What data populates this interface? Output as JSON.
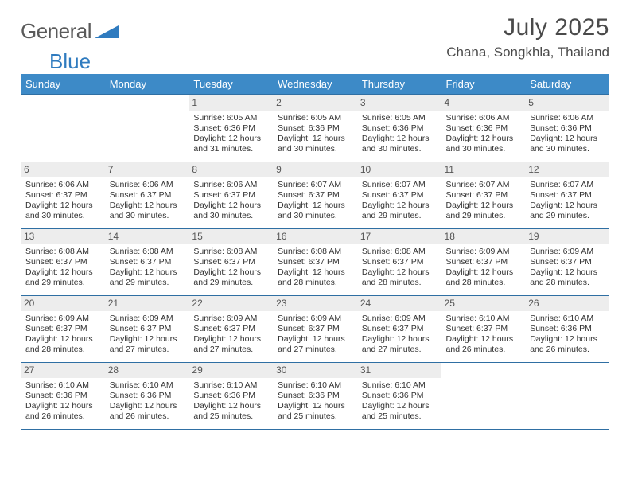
{
  "logo": {
    "word1": "General",
    "word2": "Blue"
  },
  "title": "July 2025",
  "location": "Chana, Songkhla, Thailand",
  "colors": {
    "header_bg": "#3d8ac7",
    "header_border": "#2f6fa3",
    "daynum_bg": "#ededed",
    "text": "#333333",
    "logo_gray": "#5a5a5a",
    "logo_blue": "#2f7bbf"
  },
  "daynames": [
    "Sunday",
    "Monday",
    "Tuesday",
    "Wednesday",
    "Thursday",
    "Friday",
    "Saturday"
  ],
  "weeks": [
    [
      null,
      null,
      {
        "n": "1",
        "sr": "6:05 AM",
        "ss": "6:36 PM",
        "dl": "12 hours and 31 minutes."
      },
      {
        "n": "2",
        "sr": "6:05 AM",
        "ss": "6:36 PM",
        "dl": "12 hours and 30 minutes."
      },
      {
        "n": "3",
        "sr": "6:05 AM",
        "ss": "6:36 PM",
        "dl": "12 hours and 30 minutes."
      },
      {
        "n": "4",
        "sr": "6:06 AM",
        "ss": "6:36 PM",
        "dl": "12 hours and 30 minutes."
      },
      {
        "n": "5",
        "sr": "6:06 AM",
        "ss": "6:36 PM",
        "dl": "12 hours and 30 minutes."
      }
    ],
    [
      {
        "n": "6",
        "sr": "6:06 AM",
        "ss": "6:37 PM",
        "dl": "12 hours and 30 minutes."
      },
      {
        "n": "7",
        "sr": "6:06 AM",
        "ss": "6:37 PM",
        "dl": "12 hours and 30 minutes."
      },
      {
        "n": "8",
        "sr": "6:06 AM",
        "ss": "6:37 PM",
        "dl": "12 hours and 30 minutes."
      },
      {
        "n": "9",
        "sr": "6:07 AM",
        "ss": "6:37 PM",
        "dl": "12 hours and 30 minutes."
      },
      {
        "n": "10",
        "sr": "6:07 AM",
        "ss": "6:37 PM",
        "dl": "12 hours and 29 minutes."
      },
      {
        "n": "11",
        "sr": "6:07 AM",
        "ss": "6:37 PM",
        "dl": "12 hours and 29 minutes."
      },
      {
        "n": "12",
        "sr": "6:07 AM",
        "ss": "6:37 PM",
        "dl": "12 hours and 29 minutes."
      }
    ],
    [
      {
        "n": "13",
        "sr": "6:08 AM",
        "ss": "6:37 PM",
        "dl": "12 hours and 29 minutes."
      },
      {
        "n": "14",
        "sr": "6:08 AM",
        "ss": "6:37 PM",
        "dl": "12 hours and 29 minutes."
      },
      {
        "n": "15",
        "sr": "6:08 AM",
        "ss": "6:37 PM",
        "dl": "12 hours and 29 minutes."
      },
      {
        "n": "16",
        "sr": "6:08 AM",
        "ss": "6:37 PM",
        "dl": "12 hours and 28 minutes."
      },
      {
        "n": "17",
        "sr": "6:08 AM",
        "ss": "6:37 PM",
        "dl": "12 hours and 28 minutes."
      },
      {
        "n": "18",
        "sr": "6:09 AM",
        "ss": "6:37 PM",
        "dl": "12 hours and 28 minutes."
      },
      {
        "n": "19",
        "sr": "6:09 AM",
        "ss": "6:37 PM",
        "dl": "12 hours and 28 minutes."
      }
    ],
    [
      {
        "n": "20",
        "sr": "6:09 AM",
        "ss": "6:37 PM",
        "dl": "12 hours and 28 minutes."
      },
      {
        "n": "21",
        "sr": "6:09 AM",
        "ss": "6:37 PM",
        "dl": "12 hours and 27 minutes."
      },
      {
        "n": "22",
        "sr": "6:09 AM",
        "ss": "6:37 PM",
        "dl": "12 hours and 27 minutes."
      },
      {
        "n": "23",
        "sr": "6:09 AM",
        "ss": "6:37 PM",
        "dl": "12 hours and 27 minutes."
      },
      {
        "n": "24",
        "sr": "6:09 AM",
        "ss": "6:37 PM",
        "dl": "12 hours and 27 minutes."
      },
      {
        "n": "25",
        "sr": "6:10 AM",
        "ss": "6:37 PM",
        "dl": "12 hours and 26 minutes."
      },
      {
        "n": "26",
        "sr": "6:10 AM",
        "ss": "6:36 PM",
        "dl": "12 hours and 26 minutes."
      }
    ],
    [
      {
        "n": "27",
        "sr": "6:10 AM",
        "ss": "6:36 PM",
        "dl": "12 hours and 26 minutes."
      },
      {
        "n": "28",
        "sr": "6:10 AM",
        "ss": "6:36 PM",
        "dl": "12 hours and 26 minutes."
      },
      {
        "n": "29",
        "sr": "6:10 AM",
        "ss": "6:36 PM",
        "dl": "12 hours and 25 minutes."
      },
      {
        "n": "30",
        "sr": "6:10 AM",
        "ss": "6:36 PM",
        "dl": "12 hours and 25 minutes."
      },
      {
        "n": "31",
        "sr": "6:10 AM",
        "ss": "6:36 PM",
        "dl": "12 hours and 25 minutes."
      },
      null,
      null
    ]
  ],
  "labels": {
    "sunrise": "Sunrise:",
    "sunset": "Sunset:",
    "daylight": "Daylight:"
  }
}
